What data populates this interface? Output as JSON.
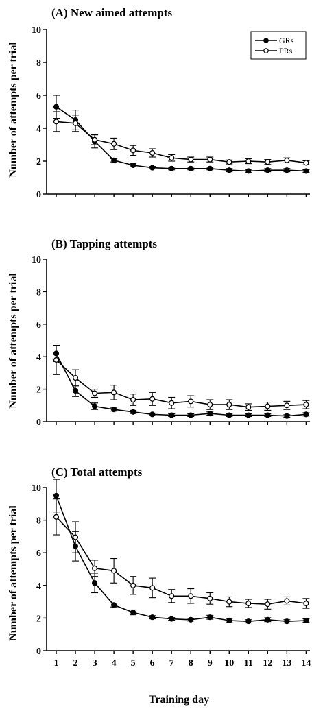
{
  "figure": {
    "ylabel": "Number of attempts per trial",
    "xlabel": "Training day"
  },
  "chart_data": [
    {
      "type": "line",
      "title": "(A) New aimed attempts",
      "xlabel": "",
      "ylabel": "Number of attempts per trial",
      "xlim": [
        0.5,
        14.2
      ],
      "ylim": [
        0,
        10
      ],
      "yticks": [
        0,
        2,
        4,
        6,
        8,
        10
      ],
      "x": [
        1,
        2,
        3,
        4,
        5,
        6,
        7,
        8,
        9,
        10,
        11,
        12,
        13,
        14
      ],
      "legend": {
        "position": "top-right"
      },
      "series": [
        {
          "name": "GRs",
          "marker": "filled-circle",
          "color": "#000000",
          "values": [
            5.3,
            4.5,
            3.2,
            2.05,
            1.75,
            1.6,
            1.55,
            1.55,
            1.55,
            1.45,
            1.4,
            1.45,
            1.45,
            1.4
          ],
          "errors": [
            0.7,
            0.6,
            0.4,
            0.1,
            0.1,
            0.08,
            0.08,
            0.08,
            0.08,
            0.1,
            0.1,
            0.1,
            0.1,
            0.08
          ]
        },
        {
          "name": "PRs",
          "marker": "open-circle",
          "color": "#000000",
          "values": [
            4.4,
            4.3,
            3.3,
            3.05,
            2.65,
            2.5,
            2.2,
            2.1,
            2.1,
            1.95,
            2.0,
            1.95,
            2.05,
            1.9
          ],
          "errors": [
            0.6,
            0.5,
            0.3,
            0.35,
            0.3,
            0.25,
            0.2,
            0.15,
            0.15,
            0.12,
            0.15,
            0.15,
            0.15,
            0.12
          ]
        }
      ]
    },
    {
      "type": "line",
      "title": "(B) Tapping attempts",
      "xlabel": "",
      "ylabel": "Number of attempts per trial",
      "xlim": [
        0.5,
        14.2
      ],
      "ylim": [
        0,
        10
      ],
      "yticks": [
        0,
        2,
        4,
        6,
        8,
        10
      ],
      "x": [
        1,
        2,
        3,
        4,
        5,
        6,
        7,
        8,
        9,
        10,
        11,
        12,
        13,
        14
      ],
      "series": [
        {
          "name": "GRs",
          "marker": "filled-circle",
          "color": "#000000",
          "values": [
            4.2,
            1.9,
            0.95,
            0.75,
            0.6,
            0.45,
            0.4,
            0.4,
            0.5,
            0.4,
            0.4,
            0.4,
            0.35,
            0.45
          ],
          "errors": [
            0.5,
            0.35,
            0.2,
            0.1,
            0.1,
            0.08,
            0.08,
            0.08,
            0.1,
            0.08,
            0.08,
            0.08,
            0.08,
            0.1
          ]
        },
        {
          "name": "PRs",
          "marker": "open-circle",
          "color": "#000000",
          "values": [
            3.8,
            2.7,
            1.75,
            1.8,
            1.35,
            1.4,
            1.15,
            1.25,
            1.05,
            1.05,
            0.9,
            0.95,
            1.0,
            1.05
          ],
          "errors": [
            0.9,
            0.5,
            0.25,
            0.45,
            0.35,
            0.4,
            0.35,
            0.35,
            0.3,
            0.3,
            0.2,
            0.25,
            0.25,
            0.25
          ]
        }
      ]
    },
    {
      "type": "line",
      "title": "(C) Total attempts",
      "xlabel": "Training day",
      "ylabel": "Number of attempts per trial",
      "xlim": [
        0.5,
        14.2
      ],
      "ylim": [
        0,
        10
      ],
      "yticks": [
        0,
        2,
        4,
        6,
        8,
        10
      ],
      "x": [
        1,
        2,
        3,
        4,
        5,
        6,
        7,
        8,
        9,
        10,
        11,
        12,
        13,
        14
      ],
      "xticks": [
        "1",
        "2",
        "3",
        "4",
        "5",
        "6",
        "7",
        "8",
        "9",
        "10",
        "11",
        "12",
        "13",
        "14"
      ],
      "series": [
        {
          "name": "GRs",
          "marker": "filled-circle",
          "color": "#000000",
          "values": [
            9.5,
            6.4,
            4.15,
            2.8,
            2.35,
            2.05,
            1.95,
            1.9,
            2.05,
            1.85,
            1.8,
            1.9,
            1.8,
            1.85
          ],
          "errors": [
            1.0,
            0.9,
            0.6,
            0.12,
            0.15,
            0.1,
            0.08,
            0.08,
            0.12,
            0.12,
            0.1,
            0.12,
            0.1,
            0.1
          ]
        },
        {
          "name": "PRs",
          "marker": "open-circle",
          "color": "#000000",
          "values": [
            8.2,
            6.95,
            5.05,
            4.9,
            4.0,
            3.85,
            3.35,
            3.35,
            3.2,
            3.0,
            2.9,
            2.85,
            3.05,
            2.9
          ],
          "errors": [
            1.1,
            0.95,
            0.5,
            0.75,
            0.55,
            0.6,
            0.4,
            0.45,
            0.35,
            0.3,
            0.25,
            0.3,
            0.25,
            0.3
          ]
        }
      ]
    }
  ]
}
